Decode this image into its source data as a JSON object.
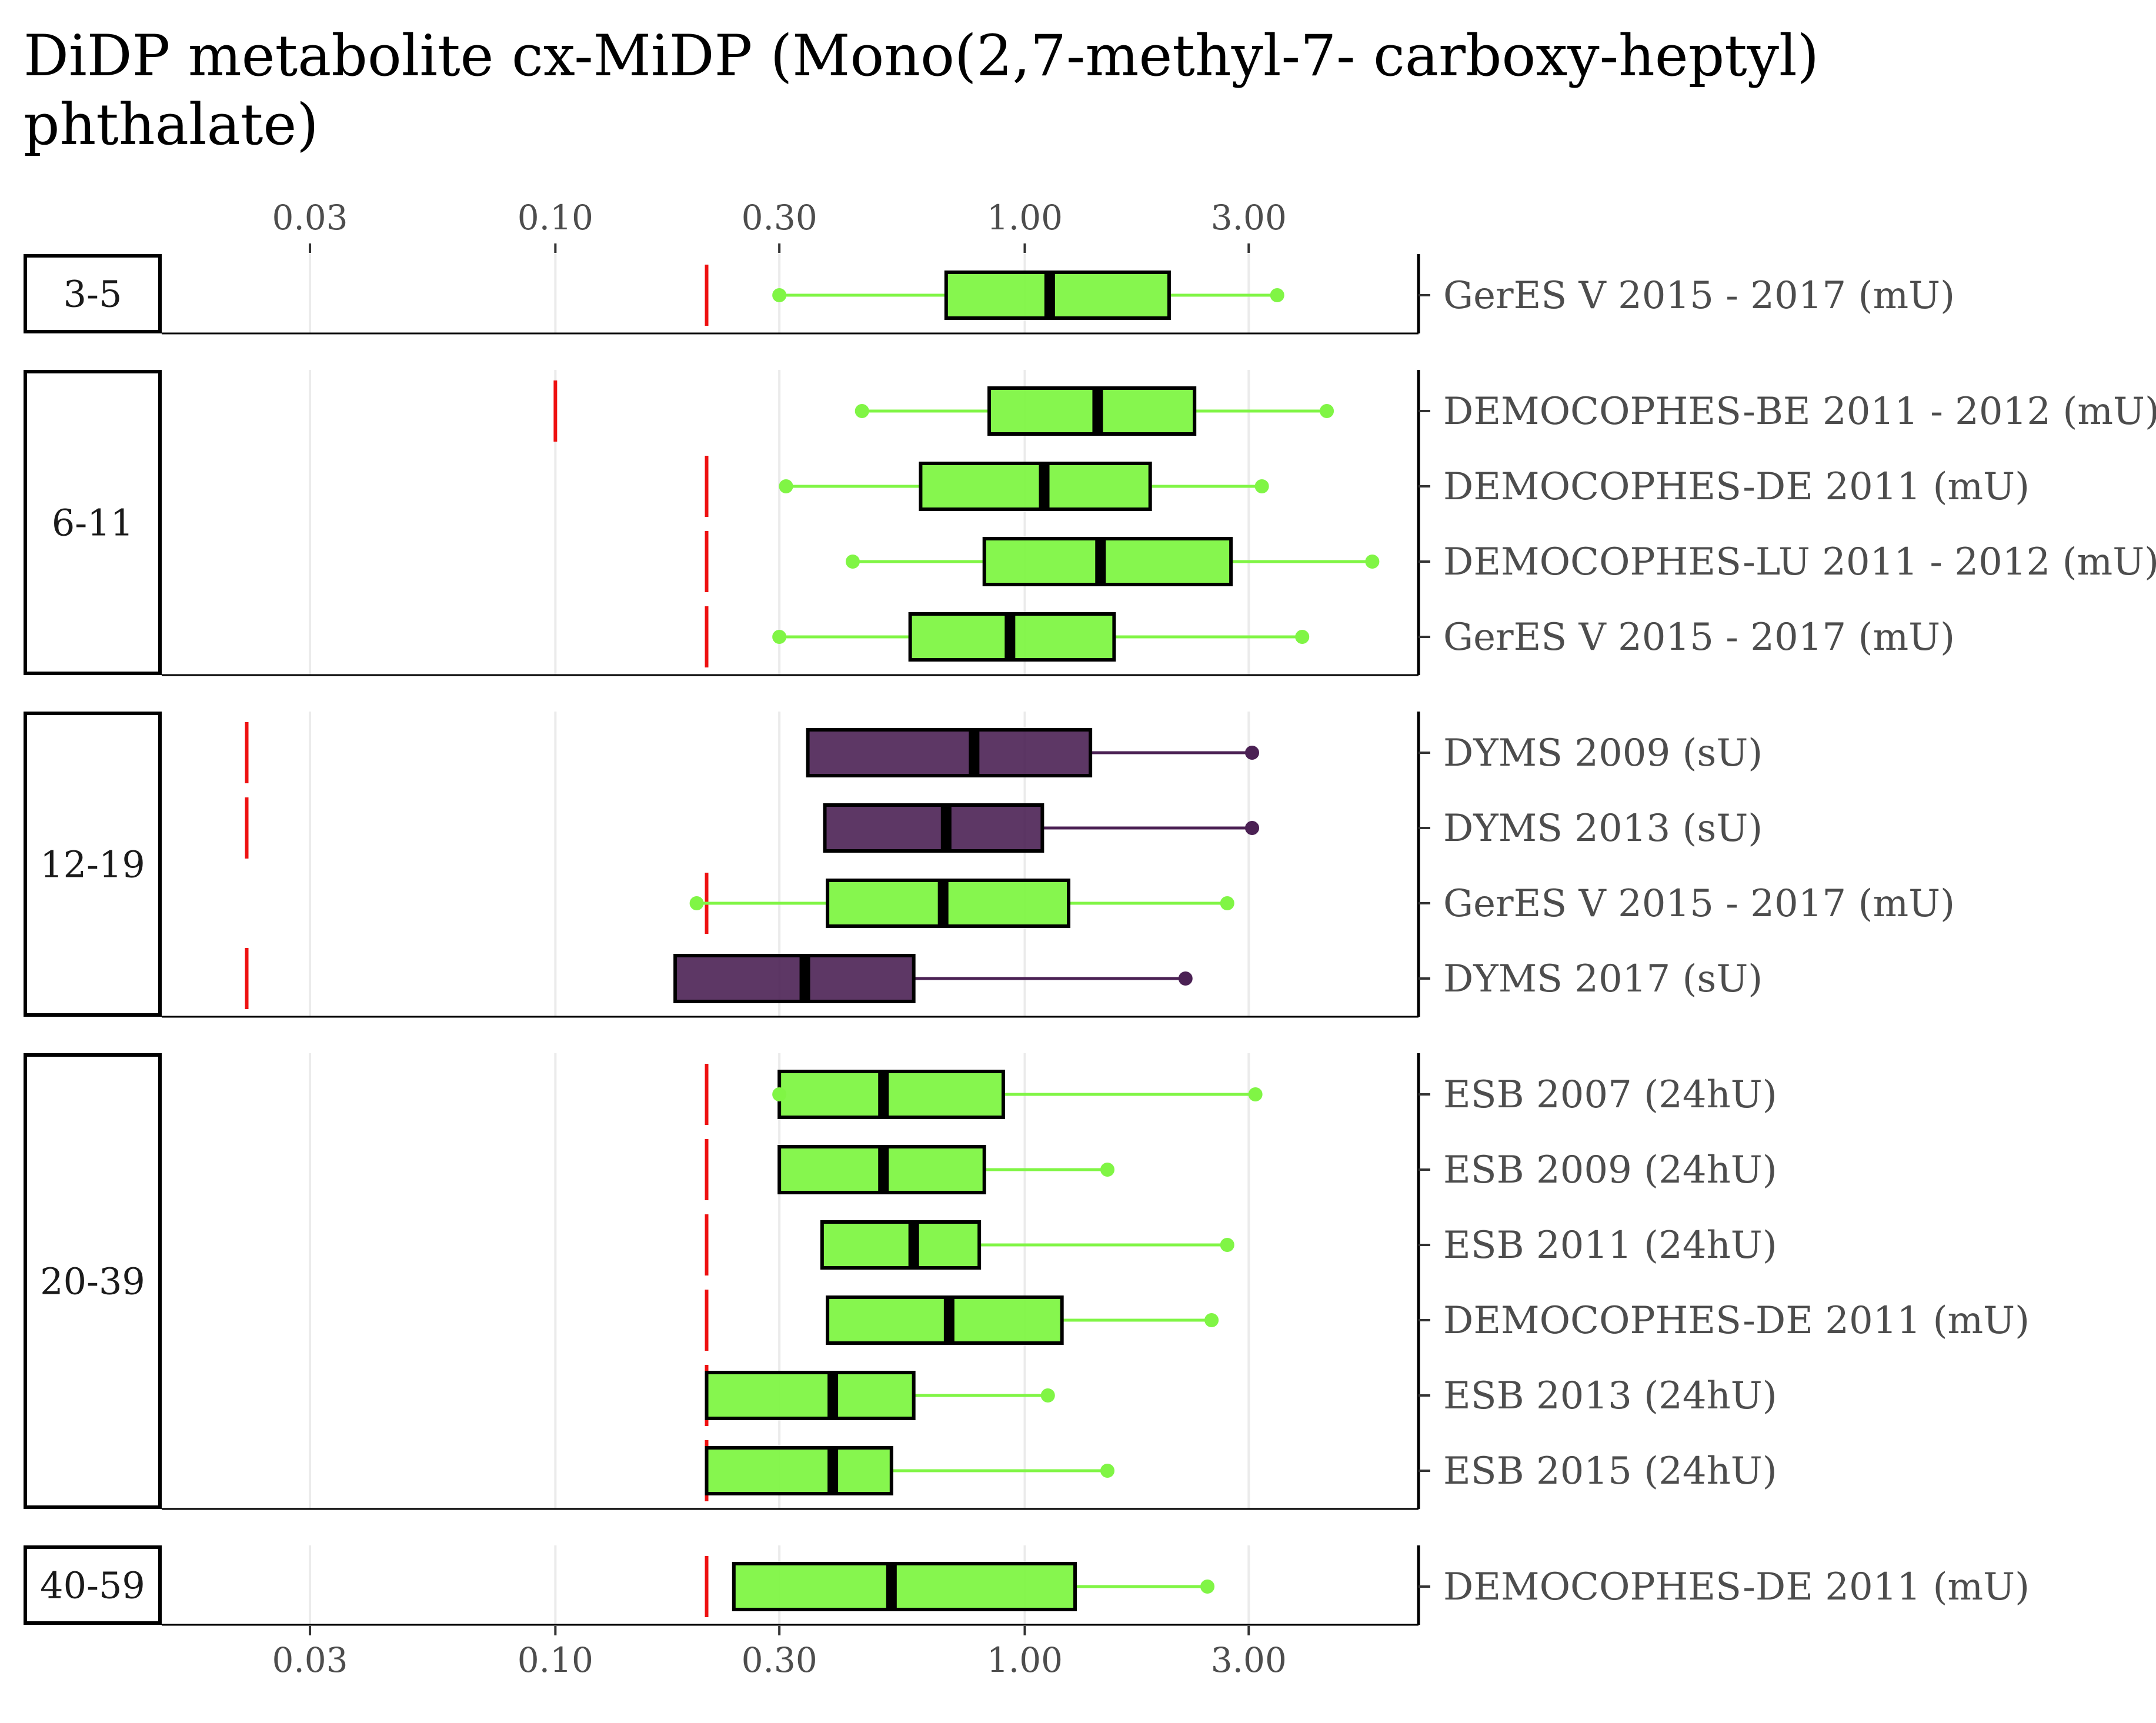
{
  "chart_data": {
    "type": "boxplot",
    "title": "DiDP metabolite cx-MiDP (Mono(2,7-methyl-7- carboxy-heptyl) phthalate)",
    "title_lines": [
      "DiDP metabolite cx-MiDP (Mono(2,7-methyl-7- carboxy-heptyl)",
      "phthalate)"
    ],
    "x_scale": "log10",
    "xlim": [
      0.0145,
      6.9
    ],
    "x_ticks": [
      0.03,
      0.1,
      0.3,
      1.0,
      3.0
    ],
    "x_tick_labels": [
      "0.03",
      "0.10",
      "0.30",
      "1.00",
      "3.00"
    ],
    "grid": "vertical",
    "colors": {
      "mU": "#80f545",
      "24hU": "#80f545",
      "sU": "#4b2154",
      "loq_line": "#ee1111",
      "box_border": "#000000"
    },
    "panels": [
      {
        "age_group": "3-5",
        "rows": [
          {
            "label": "GerES V 2015 - 2017 (mU)",
            "matrix": "mU",
            "loq": 0.21,
            "min": 0.3,
            "q1": 0.68,
            "median": 1.13,
            "q3": 2.03,
            "max": 3.45
          }
        ]
      },
      {
        "age_group": "6-11",
        "rows": [
          {
            "label": "DEMOCOPHES-BE 2011 - 2012 (mU)",
            "matrix": "mU",
            "loq": 0.1,
            "min": 0.45,
            "q1": 0.84,
            "median": 1.43,
            "q3": 2.3,
            "max": 4.4
          },
          {
            "label": "DEMOCOPHES-DE 2011 (mU)",
            "matrix": "mU",
            "loq": 0.21,
            "min": 0.31,
            "q1": 0.6,
            "median": 1.1,
            "q3": 1.85,
            "max": 3.2
          },
          {
            "label": "DEMOCOPHES-LU 2011 - 2012 (mU)",
            "matrix": "mU",
            "loq": 0.21,
            "min": 0.43,
            "q1": 0.82,
            "median": 1.45,
            "q3": 2.75,
            "max": 5.5
          },
          {
            "label": "GerES V 2015 - 2017 (mU)",
            "matrix": "mU",
            "loq": 0.21,
            "min": 0.3,
            "q1": 0.57,
            "median": 0.93,
            "q3": 1.55,
            "max": 3.9
          }
        ]
      },
      {
        "age_group": "12-19",
        "rows": [
          {
            "label": "DYMS 2009 (sU)",
            "matrix": "sU",
            "loq": 0.022,
            "min": null,
            "q1": 0.345,
            "median": 0.78,
            "q3": 1.38,
            "max": 3.05
          },
          {
            "label": "DYMS 2013 (sU)",
            "matrix": "sU",
            "loq": 0.022,
            "min": null,
            "q1": 0.375,
            "median": 0.68,
            "q3": 1.09,
            "max": 3.05
          },
          {
            "label": "GerES V 2015 - 2017 (mU)",
            "matrix": "mU",
            "loq": 0.21,
            "min": 0.2,
            "q1": 0.38,
            "median": 0.67,
            "q3": 1.24,
            "max": 2.7
          },
          {
            "label": "DYMS 2017 (sU)",
            "matrix": "sU",
            "loq": 0.022,
            "min": null,
            "q1": 0.18,
            "median": 0.34,
            "q3": 0.58,
            "max": 2.2
          }
        ]
      },
      {
        "age_group": "20-39",
        "rows": [
          {
            "label": "ESB 2007 (24hU)",
            "matrix": "24hU",
            "loq": 0.21,
            "min": 0.3,
            "q1": 0.3,
            "median": 0.5,
            "q3": 0.9,
            "max": 3.1
          },
          {
            "label": "ESB 2009 (24hU)",
            "matrix": "24hU",
            "loq": 0.21,
            "min": null,
            "q1": 0.3,
            "median": 0.5,
            "q3": 0.82,
            "max": 1.5
          },
          {
            "label": "ESB 2011 (24hU)",
            "matrix": "24hU",
            "loq": 0.21,
            "min": null,
            "q1": 0.37,
            "median": 0.58,
            "q3": 0.8,
            "max": 2.7
          },
          {
            "label": "DEMOCOPHES-DE 2011 (mU)",
            "matrix": "mU",
            "loq": 0.21,
            "min": null,
            "q1": 0.38,
            "median": 0.69,
            "q3": 1.2,
            "max": 2.5
          },
          {
            "label": "ESB 2013 (24hU)",
            "matrix": "24hU",
            "loq": 0.21,
            "min": null,
            "q1": 0.21,
            "median": 0.39,
            "q3": 0.58,
            "max": 1.12
          },
          {
            "label": "ESB 2015 (24hU)",
            "matrix": "24hU",
            "loq": 0.21,
            "min": null,
            "q1": 0.21,
            "median": 0.39,
            "q3": 0.52,
            "max": 1.5
          }
        ]
      },
      {
        "age_group": "40-59",
        "rows": [
          {
            "label": "DEMOCOPHES-DE 2011 (mU)",
            "matrix": "mU",
            "loq": 0.21,
            "min": null,
            "q1": 0.24,
            "median": 0.52,
            "q3": 1.28,
            "max": 2.45
          }
        ]
      }
    ]
  }
}
